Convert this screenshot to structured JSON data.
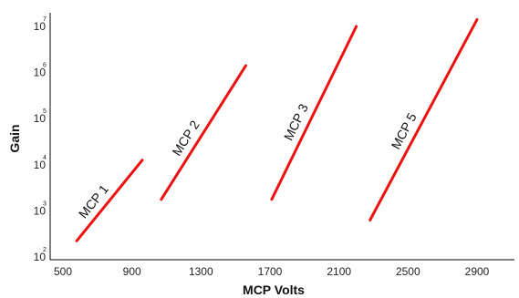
{
  "chart_data": {
    "type": "line",
    "title": "",
    "xlabel": "MCP Volts",
    "ylabel": "Gain",
    "xlim": [
      410,
      3050
    ],
    "ylim": [
      2,
      7.1
    ],
    "yscale": "log",
    "grid": false,
    "x_ticks": [
      {
        "value": 500,
        "label": "500"
      },
      {
        "value": 900,
        "label": "900"
      },
      {
        "value": 1300,
        "label": "1300"
      },
      {
        "value": 1700,
        "label": "1700"
      },
      {
        "value": 2100,
        "label": "2100"
      },
      {
        "value": 2500,
        "label": "2500"
      },
      {
        "value": 2900,
        "label": "2900"
      }
    ],
    "y_ticks": [
      {
        "value": 2,
        "base": "10",
        "exp": "2"
      },
      {
        "value": 3,
        "base": "10",
        "exp": "3"
      },
      {
        "value": 4,
        "base": "10",
        "exp": "4"
      },
      {
        "value": 5,
        "base": "10",
        "exp": "5"
      },
      {
        "value": 6,
        "base": "10",
        "exp": "6"
      },
      {
        "value": 7,
        "base": "10",
        "exp": "7"
      }
    ],
    "series_color": "#ee1111",
    "series": [
      {
        "name": "MCP 1",
        "x": [
          580,
          960
        ],
        "log10_gain": [
          2.35,
          4.1
        ]
      },
      {
        "name": "MCP 2",
        "x": [
          1070,
          1560
        ],
        "log10_gain": [
          3.25,
          6.15
        ]
      },
      {
        "name": "MCP 3",
        "x": [
          1710,
          2200
        ],
        "log10_gain": [
          3.25,
          7.0
        ]
      },
      {
        "name": "MCP 5",
        "x": [
          2280,
          2900
        ],
        "log10_gain": [
          2.8,
          7.15
        ]
      }
    ]
  }
}
